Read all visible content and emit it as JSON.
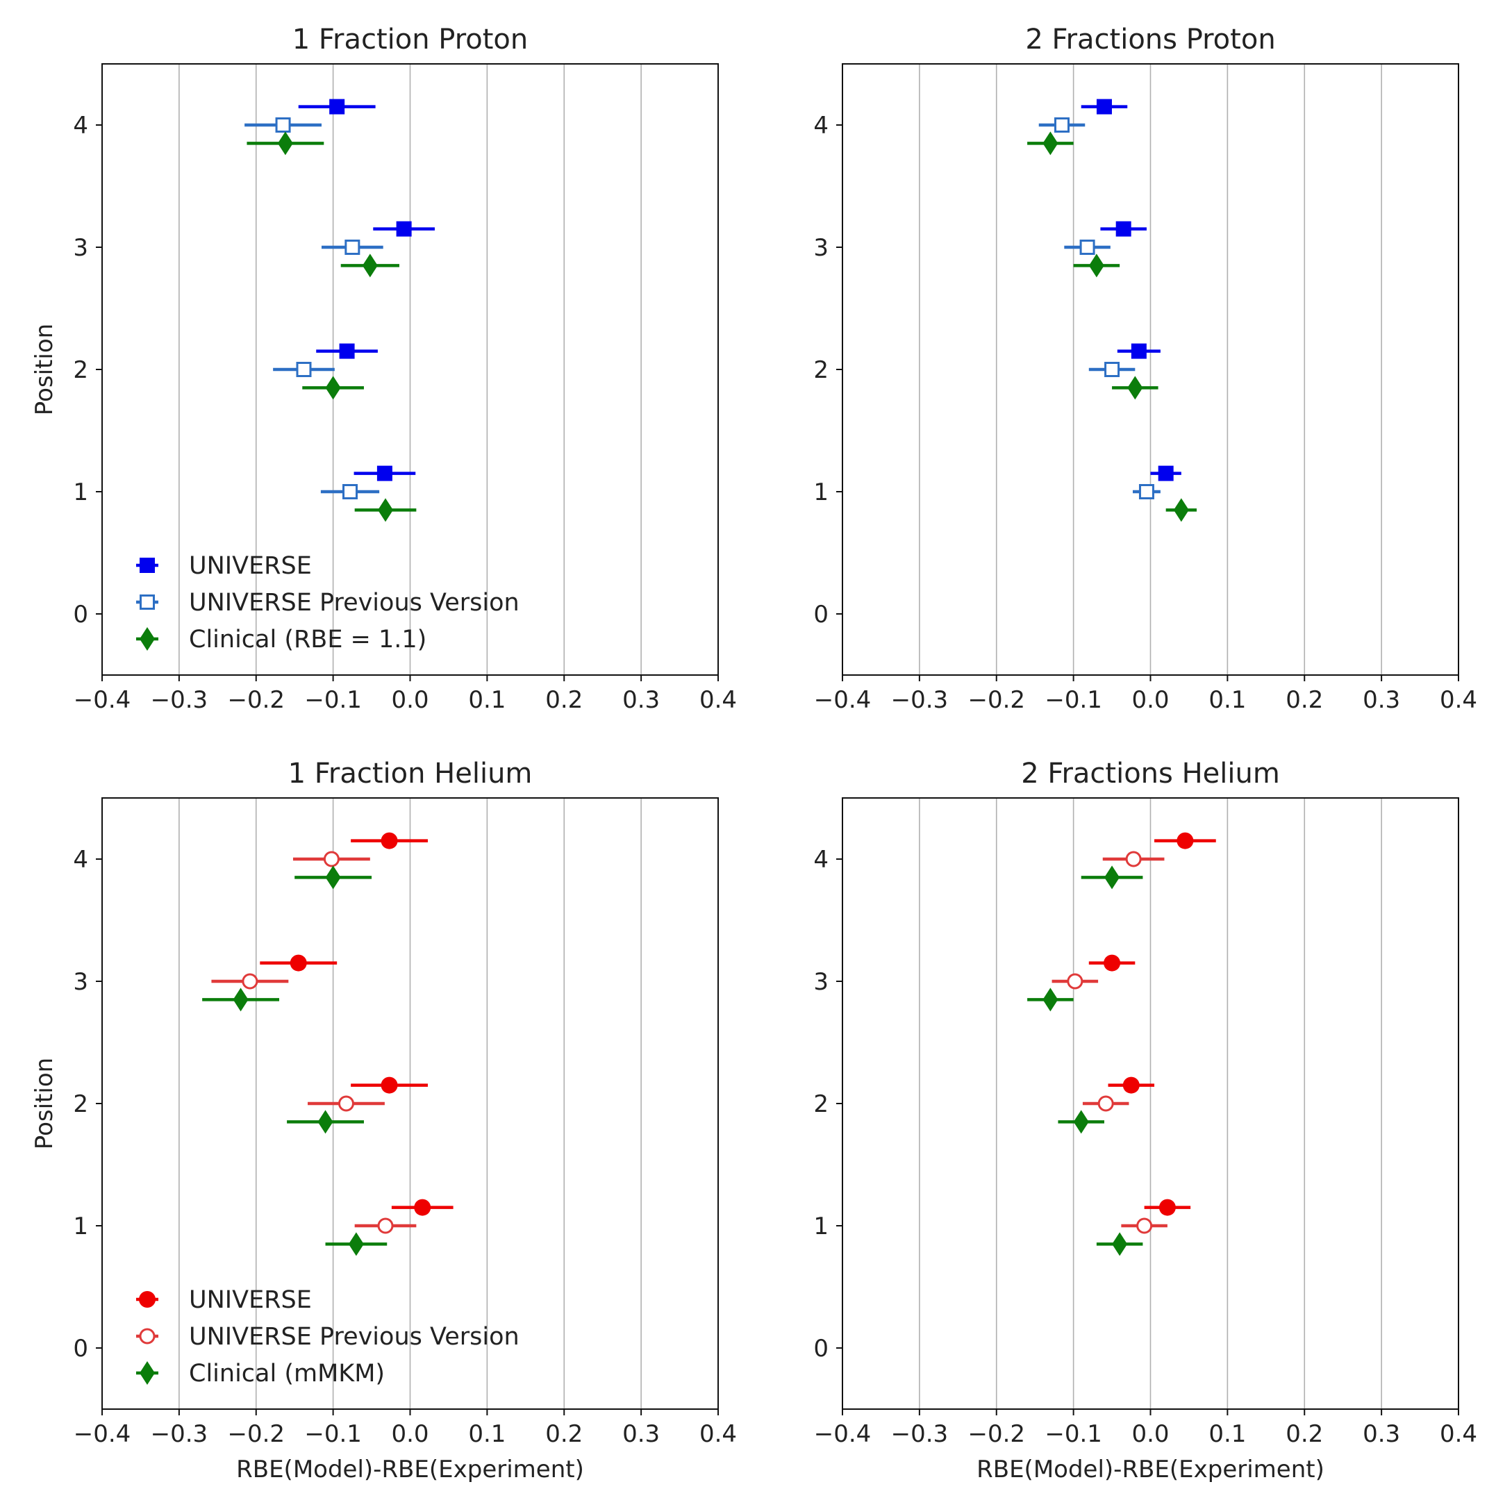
{
  "chart_data": [
    {
      "type": "errorbar",
      "title": "1 Fraction Proton",
      "xlabel": "",
      "ylabel": "Position",
      "xlim": [
        -0.4,
        0.4
      ],
      "ylim": [
        -0.5,
        4.5
      ],
      "xticks": [
        -0.4,
        -0.3,
        -0.2,
        -0.1,
        0.0,
        0.1,
        0.2,
        0.3,
        0.4
      ],
      "xtick_labels": [
        "−0.4",
        "−0.3",
        "−0.2",
        "−0.1",
        "0.0",
        "0.1",
        "0.2",
        "0.3",
        "0.4"
      ],
      "yticks": [
        0,
        1,
        2,
        3,
        4
      ],
      "ytick_labels": [
        "0",
        "1",
        "2",
        "3",
        "4"
      ],
      "grid": "vertical",
      "legend_position": "bottom-left",
      "series": [
        {
          "name": "UNIVERSE",
          "color": "#0000ee",
          "marker": "square-filled",
          "offset": 0.15,
          "points": [
            {
              "pos": 1,
              "x": -0.033,
              "err": 0.04
            },
            {
              "pos": 2,
              "x": -0.082,
              "err": 0.04
            },
            {
              "pos": 3,
              "x": -0.008,
              "err": 0.04
            },
            {
              "pos": 4,
              "x": -0.095,
              "err": 0.05
            }
          ]
        },
        {
          "name": "UNIVERSE Previous Version",
          "color": "#2d6fc4",
          "marker": "square-open",
          "offset": 0.0,
          "points": [
            {
              "pos": 1,
              "x": -0.078,
              "err": 0.038
            },
            {
              "pos": 2,
              "x": -0.138,
              "err": 0.04
            },
            {
              "pos": 3,
              "x": -0.075,
              "err": 0.04
            },
            {
              "pos": 4,
              "x": -0.165,
              "err": 0.05
            }
          ]
        },
        {
          "name": "Clinical (RBE = 1.1)",
          "color": "#0b7d0b",
          "marker": "diamond",
          "offset": -0.15,
          "points": [
            {
              "pos": 1,
              "x": -0.032,
              "err": 0.04
            },
            {
              "pos": 2,
              "x": -0.1,
              "err": 0.04
            },
            {
              "pos": 3,
              "x": -0.052,
              "err": 0.038
            },
            {
              "pos": 4,
              "x": -0.162,
              "err": 0.05
            }
          ]
        }
      ]
    },
    {
      "type": "errorbar",
      "title": "2 Fractions Proton",
      "xlabel": "",
      "ylabel": "",
      "xlim": [
        -0.4,
        0.4
      ],
      "ylim": [
        -0.5,
        4.5
      ],
      "xticks": [
        -0.4,
        -0.3,
        -0.2,
        -0.1,
        0.0,
        0.1,
        0.2,
        0.3,
        0.4
      ],
      "xtick_labels": [
        "−0.4",
        "−0.3",
        "−0.2",
        "−0.1",
        "0.0",
        "0.1",
        "0.2",
        "0.3",
        "0.4"
      ],
      "yticks": [
        0,
        1,
        2,
        3,
        4
      ],
      "ytick_labels": [
        "0",
        "1",
        "2",
        "3",
        "4"
      ],
      "grid": "vertical",
      "legend_position": "none",
      "series": [
        {
          "name": "UNIVERSE",
          "color": "#0000ee",
          "marker": "square-filled",
          "offset": 0.15,
          "points": [
            {
              "pos": 1,
              "x": 0.02,
              "err": 0.02
            },
            {
              "pos": 2,
              "x": -0.015,
              "err": 0.028
            },
            {
              "pos": 3,
              "x": -0.035,
              "err": 0.03
            },
            {
              "pos": 4,
              "x": -0.06,
              "err": 0.03
            }
          ]
        },
        {
          "name": "UNIVERSE Previous Version",
          "color": "#2d6fc4",
          "marker": "square-open",
          "offset": 0.0,
          "points": [
            {
              "pos": 1,
              "x": -0.005,
              "err": 0.018
            },
            {
              "pos": 2,
              "x": -0.05,
              "err": 0.03
            },
            {
              "pos": 3,
              "x": -0.082,
              "err": 0.03
            },
            {
              "pos": 4,
              "x": -0.115,
              "err": 0.03
            }
          ]
        },
        {
          "name": "Clinical (RBE = 1.1)",
          "color": "#0b7d0b",
          "marker": "diamond",
          "offset": -0.15,
          "points": [
            {
              "pos": 1,
              "x": 0.04,
              "err": 0.02
            },
            {
              "pos": 2,
              "x": -0.02,
              "err": 0.03
            },
            {
              "pos": 3,
              "x": -0.07,
              "err": 0.03
            },
            {
              "pos": 4,
              "x": -0.13,
              "err": 0.03
            }
          ]
        }
      ]
    },
    {
      "type": "errorbar",
      "title": "1 Fraction Helium",
      "xlabel": "RBE(Model)-RBE(Experiment)",
      "ylabel": "Position",
      "xlim": [
        -0.4,
        0.4
      ],
      "ylim": [
        -0.5,
        4.5
      ],
      "xticks": [
        -0.4,
        -0.3,
        -0.2,
        -0.1,
        0.0,
        0.1,
        0.2,
        0.3,
        0.4
      ],
      "xtick_labels": [
        "−0.4",
        "−0.3",
        "−0.2",
        "−0.1",
        "0.0",
        "0.1",
        "0.2",
        "0.3",
        "0.4"
      ],
      "yticks": [
        0,
        1,
        2,
        3,
        4
      ],
      "ytick_labels": [
        "0",
        "1",
        "2",
        "3",
        "4"
      ],
      "grid": "vertical",
      "legend_position": "bottom-left",
      "series": [
        {
          "name": "UNIVERSE",
          "color": "#ee0000",
          "marker": "circle-filled",
          "offset": 0.15,
          "points": [
            {
              "pos": 1,
              "x": 0.016,
              "err": 0.04
            },
            {
              "pos": 2,
              "x": -0.027,
              "err": 0.05
            },
            {
              "pos": 3,
              "x": -0.145,
              "err": 0.05
            },
            {
              "pos": 4,
              "x": -0.027,
              "err": 0.05
            }
          ]
        },
        {
          "name": "UNIVERSE Previous Version",
          "color": "#e03a3a",
          "marker": "circle-open",
          "offset": 0.0,
          "points": [
            {
              "pos": 1,
              "x": -0.032,
              "err": 0.04
            },
            {
              "pos": 2,
              "x": -0.083,
              "err": 0.05
            },
            {
              "pos": 3,
              "x": -0.208,
              "err": 0.05
            },
            {
              "pos": 4,
              "x": -0.102,
              "err": 0.05
            }
          ]
        },
        {
          "name": "Clinical (mMKM)",
          "color": "#0b7d0b",
          "marker": "diamond",
          "offset": -0.15,
          "points": [
            {
              "pos": 1,
              "x": -0.07,
              "err": 0.04
            },
            {
              "pos": 2,
              "x": -0.11,
              "err": 0.05
            },
            {
              "pos": 3,
              "x": -0.22,
              "err": 0.05
            },
            {
              "pos": 4,
              "x": -0.1,
              "err": 0.05
            }
          ]
        }
      ]
    },
    {
      "type": "errorbar",
      "title": "2 Fractions Helium",
      "xlabel": "RBE(Model)-RBE(Experiment)",
      "ylabel": "",
      "xlim": [
        -0.4,
        0.4
      ],
      "ylim": [
        -0.5,
        4.5
      ],
      "xticks": [
        -0.4,
        -0.3,
        -0.2,
        -0.1,
        0.0,
        0.1,
        0.2,
        0.3,
        0.4
      ],
      "xtick_labels": [
        "−0.4",
        "−0.3",
        "−0.2",
        "−0.1",
        "0.0",
        "0.1",
        "0.2",
        "0.3",
        "0.4"
      ],
      "yticks": [
        0,
        1,
        2,
        3,
        4
      ],
      "ytick_labels": [
        "0",
        "1",
        "2",
        "3",
        "4"
      ],
      "grid": "vertical",
      "legend_position": "none",
      "series": [
        {
          "name": "UNIVERSE",
          "color": "#ee0000",
          "marker": "circle-filled",
          "offset": 0.15,
          "points": [
            {
              "pos": 1,
              "x": 0.022,
              "err": 0.03
            },
            {
              "pos": 2,
              "x": -0.025,
              "err": 0.03
            },
            {
              "pos": 3,
              "x": -0.05,
              "err": 0.03
            },
            {
              "pos": 4,
              "x": 0.045,
              "err": 0.04
            }
          ]
        },
        {
          "name": "UNIVERSE Previous Version",
          "color": "#e03a3a",
          "marker": "circle-open",
          "offset": 0.0,
          "points": [
            {
              "pos": 1,
              "x": -0.008,
              "err": 0.03
            },
            {
              "pos": 2,
              "x": -0.058,
              "err": 0.03
            },
            {
              "pos": 3,
              "x": -0.098,
              "err": 0.03
            },
            {
              "pos": 4,
              "x": -0.022,
              "err": 0.04
            }
          ]
        },
        {
          "name": "Clinical (mMKM)",
          "color": "#0b7d0b",
          "marker": "diamond",
          "offset": -0.15,
          "points": [
            {
              "pos": 1,
              "x": -0.04,
              "err": 0.03
            },
            {
              "pos": 2,
              "x": -0.09,
              "err": 0.03
            },
            {
              "pos": 3,
              "x": -0.13,
              "err": 0.03
            },
            {
              "pos": 4,
              "x": -0.05,
              "err": 0.04
            }
          ]
        }
      ]
    }
  ]
}
